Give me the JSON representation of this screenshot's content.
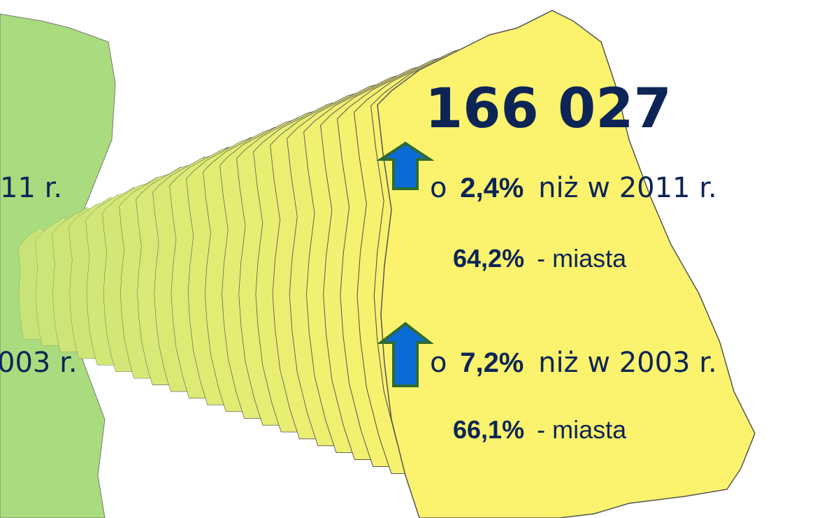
{
  "headline": "166 027",
  "left_fragments": [
    "11 r.",
    "003 r."
  ],
  "changes": [
    {
      "prefix": "o",
      "value": "2,4%",
      "suffix": "niż w 2011 r.",
      "urban_share": "64,2%",
      "urban_label": "- miasta"
    },
    {
      "prefix": "o",
      "value": "7,2%",
      "suffix": "niż w 2003 r.",
      "urban_share": "66,1%",
      "urban_label": "- miasta"
    }
  ]
}
